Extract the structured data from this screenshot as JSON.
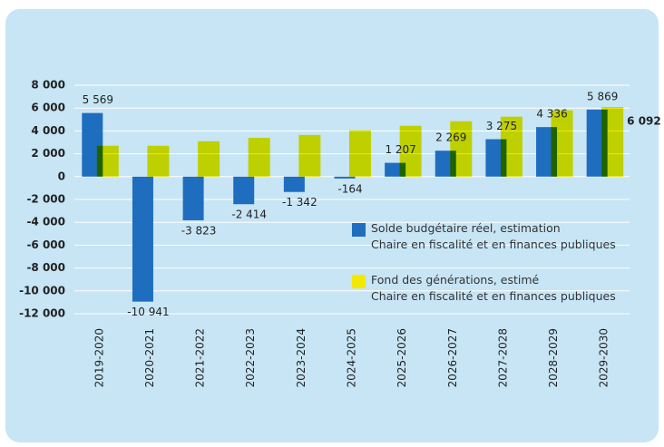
{
  "chart_data": {
    "type": "bar",
    "categories": [
      "2019-2020",
      "2020-2021",
      "2021-2022",
      "2022-2023",
      "2023-2024",
      "2024-2025",
      "2025-2026",
      "2026-2027",
      "2027-2028",
      "2028-2029",
      "2029-2030"
    ],
    "series": [
      {
        "name": "Solde budgétaire réel, estimation\nChaire en fiscalité et en finances publiques",
        "color": "#1f6dbf",
        "values": [
          5569,
          -10941,
          -3823,
          -2414,
          -1342,
          -164,
          1207,
          2269,
          3275,
          4336,
          5869
        ],
        "value_labels": [
          "5 569",
          "-10 941",
          "-3 823",
          "-2 414",
          "-1 342",
          "-164",
          "1 207",
          "2 269",
          "3 275",
          "4 336",
          "5 869"
        ]
      },
      {
        "name": "Fond des générations, estimé\nChaire en fiscalité et en finances publiques",
        "color": "#f4e800",
        "values": [
          2700,
          2700,
          3100,
          3400,
          3650,
          4050,
          4450,
          4850,
          5250,
          5800,
          6092
        ],
        "value_labels": [
          null,
          null,
          null,
          null,
          null,
          null,
          null,
          null,
          null,
          null,
          "6 092"
        ]
      }
    ],
    "ylim": [
      -12000,
      8000
    ],
    "yticks": [
      {
        "value": 8000,
        "label": "8 000"
      },
      {
        "value": 6000,
        "label": "6 000"
      },
      {
        "value": 4000,
        "label": "4 000"
      },
      {
        "value": 2000,
        "label": "2 000"
      },
      0,
      {
        "value": -2000,
        "label": "-2 000"
      },
      {
        "value": -4000,
        "label": "-4 000"
      },
      {
        "value": -6000,
        "label": "-6 000"
      },
      {
        "value": -8000,
        "label": "-8 000"
      },
      {
        "value": -10000,
        "label": "-10 000"
      },
      {
        "value": -12000,
        "label": "-12 000"
      }
    ],
    "grid": true
  }
}
